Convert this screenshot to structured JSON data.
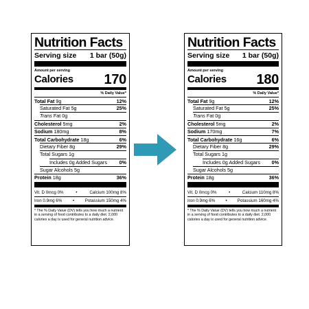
{
  "labels": [
    {
      "title": "Nutrition Facts",
      "serving_label": "Serving size",
      "serving_value": "1 bar (50g)",
      "amount_per_serving": "Amount per serving",
      "calories_label": "Calories",
      "calories_value": "170",
      "dv_header": "% Daily Value*",
      "total_fat": {
        "name": "Total Fat",
        "amount": "9g",
        "pct": "12%"
      },
      "saturated_fat": {
        "name": "Saturated Fat",
        "amount": "5g",
        "pct": "25%"
      },
      "trans_fat": {
        "name": "Trans",
        "suffix": "Fat",
        "amount": "0g"
      },
      "cholesterol": {
        "name": "Cholesterol",
        "amount": "5mg",
        "pct": "2%"
      },
      "sodium": {
        "name": "Sodium",
        "amount": "180mg",
        "pct": "8%"
      },
      "total_carb": {
        "name": "Total Carbohydrate",
        "amount": "18g",
        "pct": "6%"
      },
      "fiber": {
        "name": "Dietary Fiber",
        "amount": "8g",
        "pct": "29%"
      },
      "total_sugars": {
        "name": "Total Sugars",
        "amount": "1g"
      },
      "added_sugars": {
        "name": "Includes 0g Added Sugars",
        "pct": "0%"
      },
      "sugar_alcohols": {
        "name": "Sugar Alcohols",
        "amount": "5g"
      },
      "protein": {
        "name": "Protein",
        "amount": "18g",
        "pct": "36%"
      },
      "vit_d": "Vit. D 0mcg 0%",
      "calcium": "Calcium 100mg 8%",
      "iron": "Iron 0.9mg 6%",
      "potassium": "Potassium 150mg 4%",
      "bullet": "•",
      "footnote": "* The % Daily Value (DV) tells you how much a nutrient in a serving of food contributes to a daily diet. 2,000 calories a day is used for general nutrition advice."
    },
    {
      "title": "Nutrition Facts",
      "serving_label": "Serving size",
      "serving_value": "1 bar (50g)",
      "amount_per_serving": "Amount per serving",
      "calories_label": "Calories",
      "calories_value": "180",
      "dv_header": "% Daily Value*",
      "total_fat": {
        "name": "Total Fat",
        "amount": "9g",
        "pct": "12%"
      },
      "saturated_fat": {
        "name": "Saturated Fat",
        "amount": "5g",
        "pct": "25%"
      },
      "trans_fat": {
        "name": "Trans",
        "suffix": "Fat",
        "amount": "0g"
      },
      "cholesterol": {
        "name": "Cholesterol",
        "amount": "5mg",
        "pct": "2%"
      },
      "sodium": {
        "name": "Sodium",
        "amount": "170mg",
        "pct": "7%"
      },
      "total_carb": {
        "name": "Total Carbohydrate",
        "amount": "16g",
        "pct": "6%"
      },
      "fiber": {
        "name": "Dietary Fiber",
        "amount": "8g",
        "pct": "29%"
      },
      "total_sugars": {
        "name": "Total Sugars",
        "amount": "1g"
      },
      "added_sugars": {
        "name": "Includes 0g Added Sugars",
        "pct": "0%"
      },
      "sugar_alcohols": {
        "name": "Sugar Alcohols",
        "amount": "5g"
      },
      "protein": {
        "name": "Protein",
        "amount": "18g",
        "pct": "36%"
      },
      "vit_d": "Vit. D 0mcg 0%",
      "calcium": "Calcium 110mg 8%",
      "iron": "Iron 0.9mg 6%",
      "potassium": "Potassium 160mg 4%",
      "bullet": "•",
      "footnote": "* The % Daily Value (DV) tells you how much a nutrient in a serving of food contributes to a daily diet. 2,000 calories a day is used for general nutrition advice."
    }
  ],
  "arrow": {
    "icon": "arrow-right-icon",
    "color": "#2E9AB5"
  }
}
